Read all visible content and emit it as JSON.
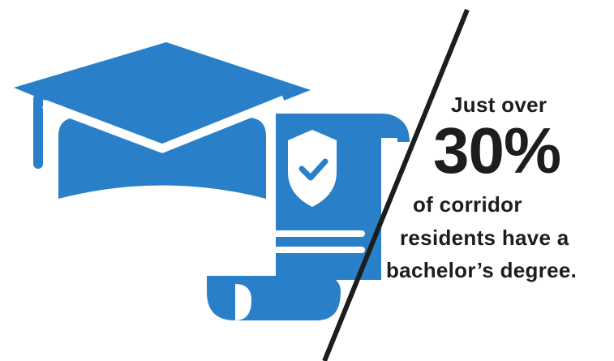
{
  "colors": {
    "icon_blue": "#2a80c8",
    "text": "#1d1d1d",
    "divider": "#1d1d1d",
    "background": "#ffffff"
  },
  "icons": [
    "graduation-cap-icon",
    "diploma-scroll-icon",
    "shield-check-icon"
  ],
  "text": {
    "line1": "Just over",
    "stat": "30%",
    "line2": "of corridor",
    "line3": "residents have a",
    "line4": "bachelor’s degree."
  }
}
